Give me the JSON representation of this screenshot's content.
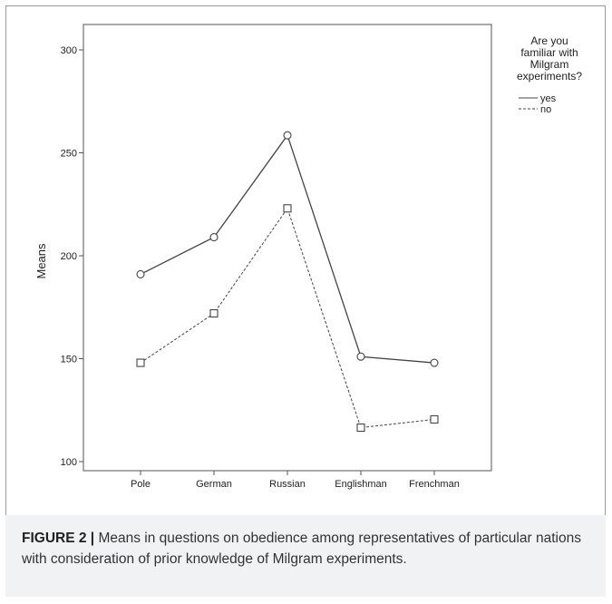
{
  "chart_data": {
    "type": "line",
    "categories": [
      "Pole",
      "German",
      "Russian",
      "Englishman",
      "Frenchman"
    ],
    "series": [
      {
        "name": "yes",
        "values": [
          191,
          209,
          258.5,
          151,
          148
        ],
        "line": "solid",
        "marker": "circle"
      },
      {
        "name": "no",
        "values": [
          148,
          172,
          223,
          116.5,
          120.5
        ],
        "line": "dashed",
        "marker": "square"
      }
    ],
    "ylabel": "Means",
    "xlabel": "",
    "ylim": [
      100,
      300
    ],
    "yticks": [
      "100",
      "150",
      "200",
      "250",
      "300"
    ],
    "legend_title": [
      "Are you",
      "familiar with",
      "Milgram",
      "experiments?"
    ],
    "legend_position": "top-right",
    "grid": false,
    "line_color": "#444444"
  },
  "caption": {
    "label": "FIGURE 2 |",
    "text": " Means in questions on obedience among representatives of particular nations with consideration of prior knowledge of Milgram experiments."
  }
}
